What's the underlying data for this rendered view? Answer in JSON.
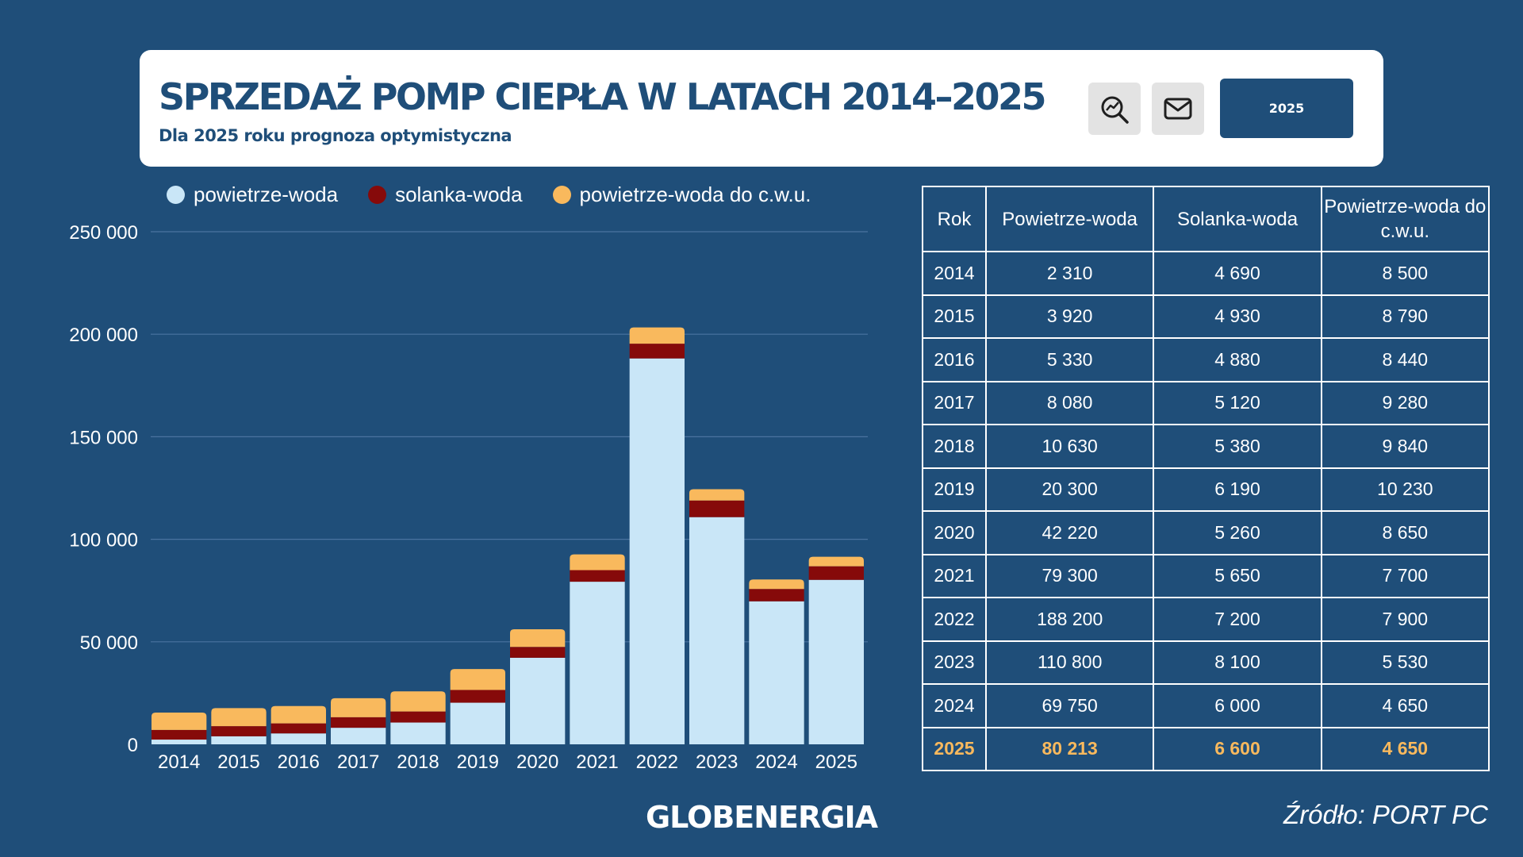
{
  "header": {
    "title": "SPRZEDAŻ POMP CIEPŁA W LATACH 2014–2025",
    "subtitle": "Dla 2025 roku prognoza optymistyczna",
    "year_button": "2025"
  },
  "icons": {
    "search": "search-chart-icon",
    "mail": "mail-icon"
  },
  "colors": {
    "background": "#1f4e79",
    "powietrze_woda": "#c9e6f7",
    "solanka_woda": "#860a0a",
    "cwu": "#f9b95d",
    "highlight": "#f9b95d"
  },
  "chart_data": {
    "type": "bar",
    "stacked": true,
    "title": "SPRZEDAŻ POMP CIEPŁA W LATACH 2014–2025",
    "categories": [
      "2014",
      "2015",
      "2016",
      "2017",
      "2018",
      "2019",
      "2020",
      "2021",
      "2022",
      "2023",
      "2024",
      "2025"
    ],
    "series": [
      {
        "name": "powietrze-woda",
        "values": [
          2310,
          3920,
          5330,
          8080,
          10630,
          20300,
          42220,
          79300,
          188200,
          110800,
          69750,
          80213
        ]
      },
      {
        "name": "solanka-woda",
        "values": [
          4690,
          4930,
          4880,
          5120,
          5380,
          6190,
          5260,
          5650,
          7200,
          8100,
          6000,
          6600
        ]
      },
      {
        "name": "powietrze-woda do c.w.u.",
        "values": [
          8500,
          8790,
          8440,
          9280,
          9840,
          10230,
          8650,
          7700,
          7900,
          5530,
          4650,
          4650
        ]
      }
    ],
    "ylim": [
      0,
      250000
    ],
    "yticks": [
      0,
      50000,
      100000,
      150000,
      200000,
      250000
    ],
    "ytick_labels": [
      "0",
      "50 000",
      "100 000",
      "150 000",
      "200 000",
      "250 000"
    ],
    "xlabel": "",
    "ylabel": "",
    "legend": "top-left",
    "grid": true
  },
  "table": {
    "headers": [
      "Rok",
      "Powietrze-woda",
      "Solanka-woda",
      "Powietrze-woda do c.w.u."
    ],
    "rows": [
      [
        "2014",
        "2 310",
        "4 690",
        "8 500"
      ],
      [
        "2015",
        "3 920",
        "4 930",
        "8 790"
      ],
      [
        "2016",
        "5 330",
        "4 880",
        "8 440"
      ],
      [
        "2017",
        "8 080",
        "5 120",
        "9 280"
      ],
      [
        "2018",
        "10 630",
        "5 380",
        "9 840"
      ],
      [
        "2019",
        "20 300",
        "6 190",
        "10 230"
      ],
      [
        "2020",
        "42 220",
        "5 260",
        "8 650"
      ],
      [
        "2021",
        "79 300",
        "5 650",
        "7 700"
      ],
      [
        "2022",
        "188 200",
        "7 200",
        "7 900"
      ],
      [
        "2023",
        "110 800",
        "8 100",
        "5 530"
      ],
      [
        "2024",
        "69 750",
        "6 000",
        "4 650"
      ],
      [
        "2025",
        "80 213",
        "6 600",
        "4 650"
      ]
    ]
  },
  "footer": {
    "logo": "GLOBENERGIA",
    "source": "Źródło: PORT PC"
  }
}
